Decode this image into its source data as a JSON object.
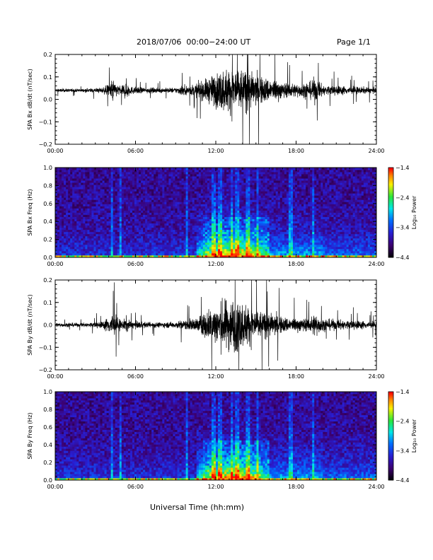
{
  "header": {
    "title": "2018/07/06  00:00−24:00 UT",
    "page": "Page 1/1"
  },
  "xaxis_title": "Universal Time (hh:mm)",
  "chart_data": [
    {
      "type": "line",
      "ylabel": "SPA Bx dB/dt (nT/sec)",
      "ylim": [
        -0.2,
        0.2
      ],
      "yticks": [
        "0.2",
        "0.1",
        "0.0",
        "−0.1",
        "−0.2"
      ],
      "xticks": [
        "00:00",
        "06:00",
        "12:00",
        "18:00",
        "24:00"
      ],
      "xlim_hours": [
        0,
        24
      ],
      "baseline": 0.04,
      "envelope": {
        "x_hours": [
          0,
          2,
          3.5,
          4.1,
          4.3,
          4.5,
          5.0,
          5.3,
          5.6,
          6.2,
          7,
          8,
          9,
          9.5,
          10,
          10.5,
          11,
          11.5,
          12,
          12.5,
          13,
          13.5,
          14,
          14.5,
          15,
          15.5,
          16,
          16.5,
          17,
          18,
          19,
          19.4,
          20,
          21,
          22,
          23,
          24
        ],
        "amplitude": [
          0.012,
          0.012,
          0.02,
          0.05,
          0.1,
          0.05,
          0.03,
          0.08,
          0.03,
          0.025,
          0.02,
          0.018,
          0.02,
          0.04,
          0.035,
          0.05,
          0.07,
          0.1,
          0.13,
          0.16,
          0.17,
          0.18,
          0.16,
          0.15,
          0.12,
          0.1,
          0.09,
          0.08,
          0.06,
          0.05,
          0.06,
          0.1,
          0.04,
          0.035,
          0.03,
          0.025,
          0.02
        ]
      }
    },
    {
      "type": "heatmap",
      "ylabel": "SPA Bx Freq (Hz)",
      "ylim": [
        0.0,
        1.0
      ],
      "yticks": [
        "1.0",
        "0.8",
        "0.6",
        "0.4",
        "0.2",
        "0.0"
      ],
      "xticks": [
        "00:00",
        "06:00",
        "12:00",
        "18:00",
        "24:00"
      ],
      "colorbar": {
        "label": "Log₁₀ Power",
        "ticks": [
          "−1.4",
          "−2.4",
          "−3.4",
          "−4.4"
        ],
        "range": [
          -4.4,
          -1.4
        ]
      }
    },
    {
      "type": "line",
      "ylabel": "SPA By dB/dt (nT/sec)",
      "ylim": [
        -0.2,
        0.2
      ],
      "yticks": [
        "0.2",
        "0.1",
        "0.0",
        "−0.1",
        "−0.2"
      ],
      "xticks": [
        "00:00",
        "06:00",
        "12:00",
        "18:00",
        "24:00"
      ],
      "xlim_hours": [
        0,
        24
      ],
      "baseline": 0.0,
      "envelope": {
        "x_hours": [
          0,
          2,
          3.5,
          4.0,
          4.3,
          4.6,
          5.0,
          5.3,
          5.6,
          6.2,
          7,
          8,
          9,
          9.5,
          10,
          10.5,
          11,
          11.5,
          12,
          12.5,
          13,
          13.5,
          14,
          14.5,
          15,
          15.5,
          16,
          16.5,
          17,
          18,
          19,
          19.4,
          20,
          21,
          22,
          23,
          24
        ],
        "amplitude": [
          0.015,
          0.015,
          0.025,
          0.06,
          0.1,
          0.06,
          0.03,
          0.06,
          0.03,
          0.025,
          0.02,
          0.02,
          0.025,
          0.035,
          0.04,
          0.05,
          0.08,
          0.12,
          0.15,
          0.18,
          0.2,
          0.2,
          0.17,
          0.15,
          0.12,
          0.1,
          0.09,
          0.08,
          0.06,
          0.05,
          0.05,
          0.09,
          0.045,
          0.04,
          0.035,
          0.03,
          0.025
        ]
      }
    },
    {
      "type": "heatmap",
      "ylabel": "SPA By Freq (Hz)",
      "ylim": [
        0.0,
        1.0
      ],
      "yticks": [
        "1.0",
        "0.8",
        "0.6",
        "0.4",
        "0.2",
        "0.0"
      ],
      "xticks": [
        "00:00",
        "06:00",
        "12:00",
        "18:00",
        "24:00"
      ],
      "colorbar": {
        "label": "Log₁₀ Power",
        "ticks": [
          "−1.4",
          "−2.4",
          "−3.4",
          "−4.4"
        ],
        "range": [
          -4.4,
          -1.4
        ]
      }
    }
  ]
}
